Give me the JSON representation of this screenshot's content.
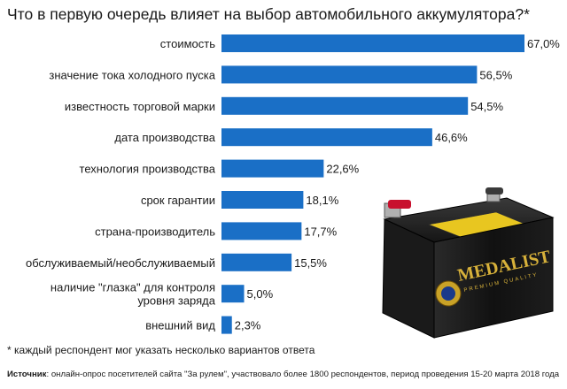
{
  "title": "Что в первую очередь влияет на выбор автомобильного аккумулятора?*",
  "footnote": "* каждый респондент мог указать несколько вариантов ответа",
  "source_label": "Источник",
  "source_text": ": онлайн-опрос посетителей сайта \"За рулем\", участвовало более 1800 респондентов, период проведения 15-20 марта 2018 года",
  "battery_brand": "MEDALIST",
  "bar_color": "#1a6fc6",
  "chart_data": {
    "type": "bar",
    "orientation": "horizontal",
    "title": "Что в первую очередь влияет на выбор автомобильного аккумулятора?*",
    "xlim": [
      0,
      67
    ],
    "categories": [
      [
        "стоимость"
      ],
      [
        "значение тока холодного пуска"
      ],
      [
        "известность торговой марки"
      ],
      [
        "дата производства"
      ],
      [
        "технология производства"
      ],
      [
        "срок гарантии"
      ],
      [
        "страна-производитель"
      ],
      [
        "обслуживаемый/необслуживаемый"
      ],
      [
        "наличие \"глазка\" для контроля",
        "уровня заряда"
      ],
      [
        "внешний вид"
      ]
    ],
    "values": [
      67.0,
      56.5,
      54.5,
      46.6,
      22.6,
      18.1,
      17.7,
      15.5,
      5.0,
      2.3
    ],
    "value_labels": [
      "67,0%",
      "56,5%",
      "54,5%",
      "46,6%",
      "22,6%",
      "18,1%",
      "17,7%",
      "15,5%",
      "5,0%",
      "2,3%"
    ]
  }
}
